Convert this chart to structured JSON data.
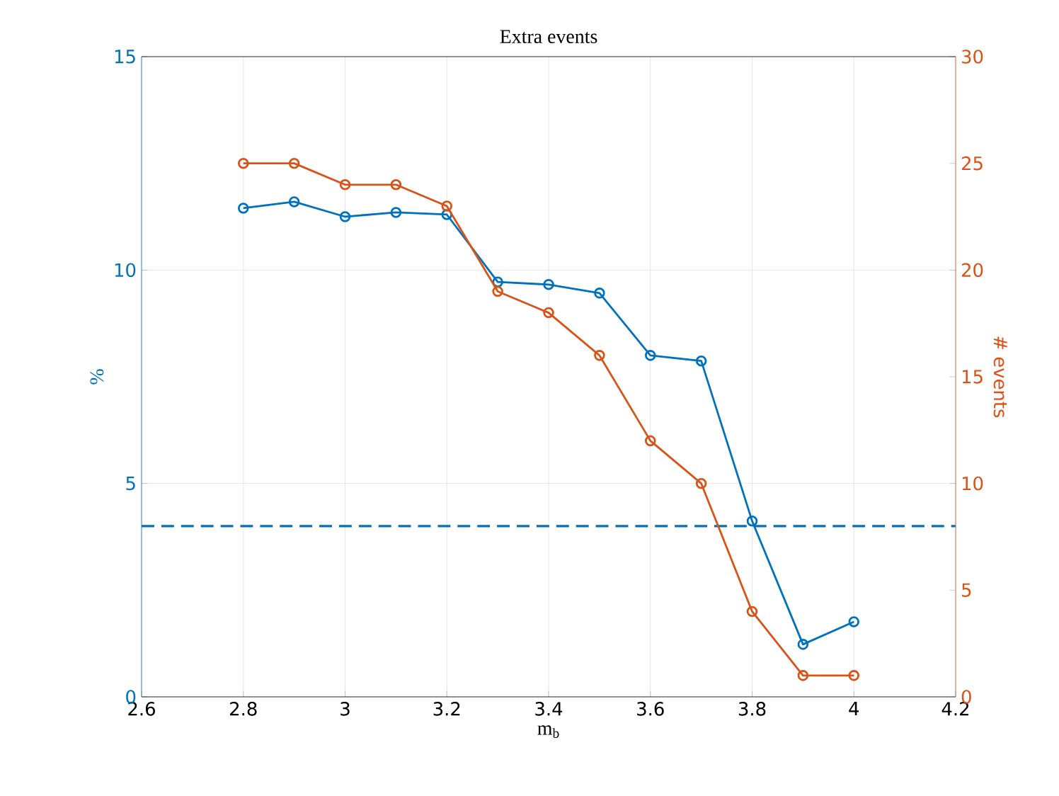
{
  "chart_data": {
    "type": "line",
    "title": "Extra events",
    "xlabel": "m$_{b}$",
    "ylabel": "%",
    "y2label": "# events",
    "x": [
      2.8,
      2.9,
      3.0,
      3.1,
      3.2,
      3.3,
      3.4,
      3.5,
      3.6,
      3.7,
      3.8,
      3.9,
      4.0
    ],
    "series": [
      {
        "color": "#0072bd",
        "values": [
          11.45,
          11.6,
          11.25,
          11.35,
          11.3,
          9.72,
          9.66,
          9.46,
          8.0,
          7.87,
          4.12,
          1.23,
          1.76
        ]
      },
      {
        "color": "#d95319",
        "axis": "y2",
        "values": [
          25,
          25,
          24,
          24,
          23,
          19,
          18,
          16,
          12,
          10,
          4,
          1,
          1
        ]
      }
    ],
    "xlim": [
      2.6,
      4.2
    ],
    "xticks": [
      2.6,
      2.8,
      3,
      3.2,
      3.4,
      3.6,
      3.8,
      4,
      4.2
    ],
    "ylim": [
      0,
      15
    ],
    "yticks": [
      0,
      5,
      10,
      15
    ],
    "y2lim": [
      0,
      30
    ],
    "y2ticks": [
      0,
      5,
      10,
      15,
      20,
      25,
      30
    ],
    "ref_lines": [
      {
        "axis": "y",
        "value": 4,
        "color": "#0072bd",
        "line_style": "dashed"
      }
    ],
    "grid": true,
    "marker": "circle",
    "line_style": "solid"
  }
}
